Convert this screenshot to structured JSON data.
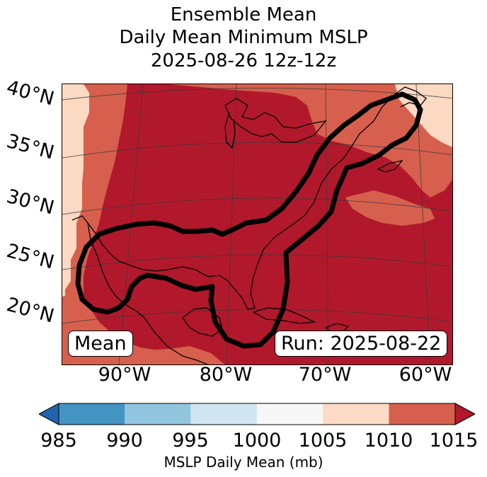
{
  "title": {
    "line1": "Ensemble Mean",
    "line2": "Daily Mean Minimum MSLP",
    "line3": "2025-08-26 12z-12z"
  },
  "map": {
    "lat_labels": [
      "40°N",
      "35°N",
      "30°N",
      "25°N",
      "20°N"
    ],
    "lon_labels": [
      "90°W",
      "80°W",
      "70°W",
      "60°W"
    ],
    "mean_box": "Mean",
    "run_box": "Run: 2025-08-22",
    "field_colors": {
      "band_1005_1010": "#fbd9c3",
      "band_1010_1015": "#d6604d",
      "band_1015_plus": "#b2182b"
    }
  },
  "colorbar": {
    "ticks": [
      "985",
      "990",
      "995",
      "1000",
      "1005",
      "1010",
      "1015"
    ],
    "label": "MSLP Daily Mean (mb)",
    "colors": [
      "#2166ac",
      "#4393c3",
      "#92c5de",
      "#d1e5f0",
      "#f7f7f7",
      "#fddbc7",
      "#d6604d",
      "#b2182b"
    ]
  }
}
